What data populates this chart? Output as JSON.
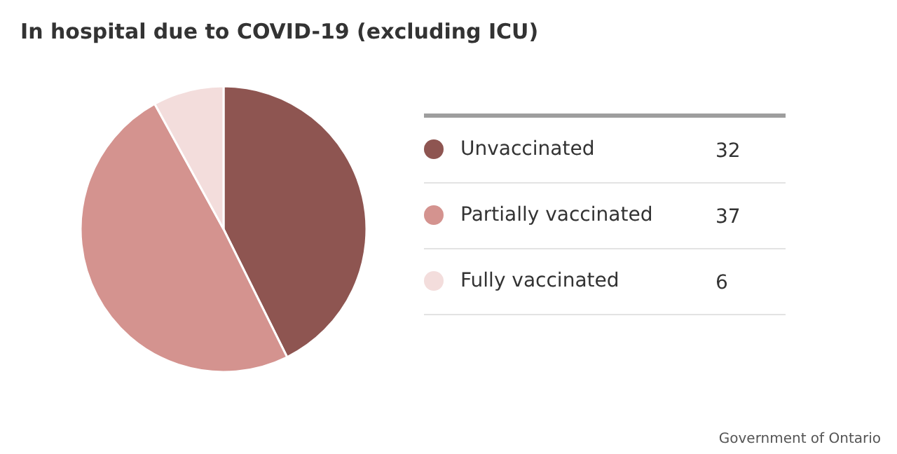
{
  "chart_data": {
    "type": "pie",
    "title": "In hospital due to COVID-19 (excluding ICU)",
    "categories": [
      "Unvaccinated",
      "Partially vaccinated",
      "Fully vaccinated"
    ],
    "values": [
      32,
      37,
      6
    ],
    "colors": [
      "#8e5551",
      "#d4938f",
      "#f3dddc"
    ],
    "data_labels": true,
    "legend": "right",
    "annotations": [
      "Government of Ontario"
    ]
  }
}
